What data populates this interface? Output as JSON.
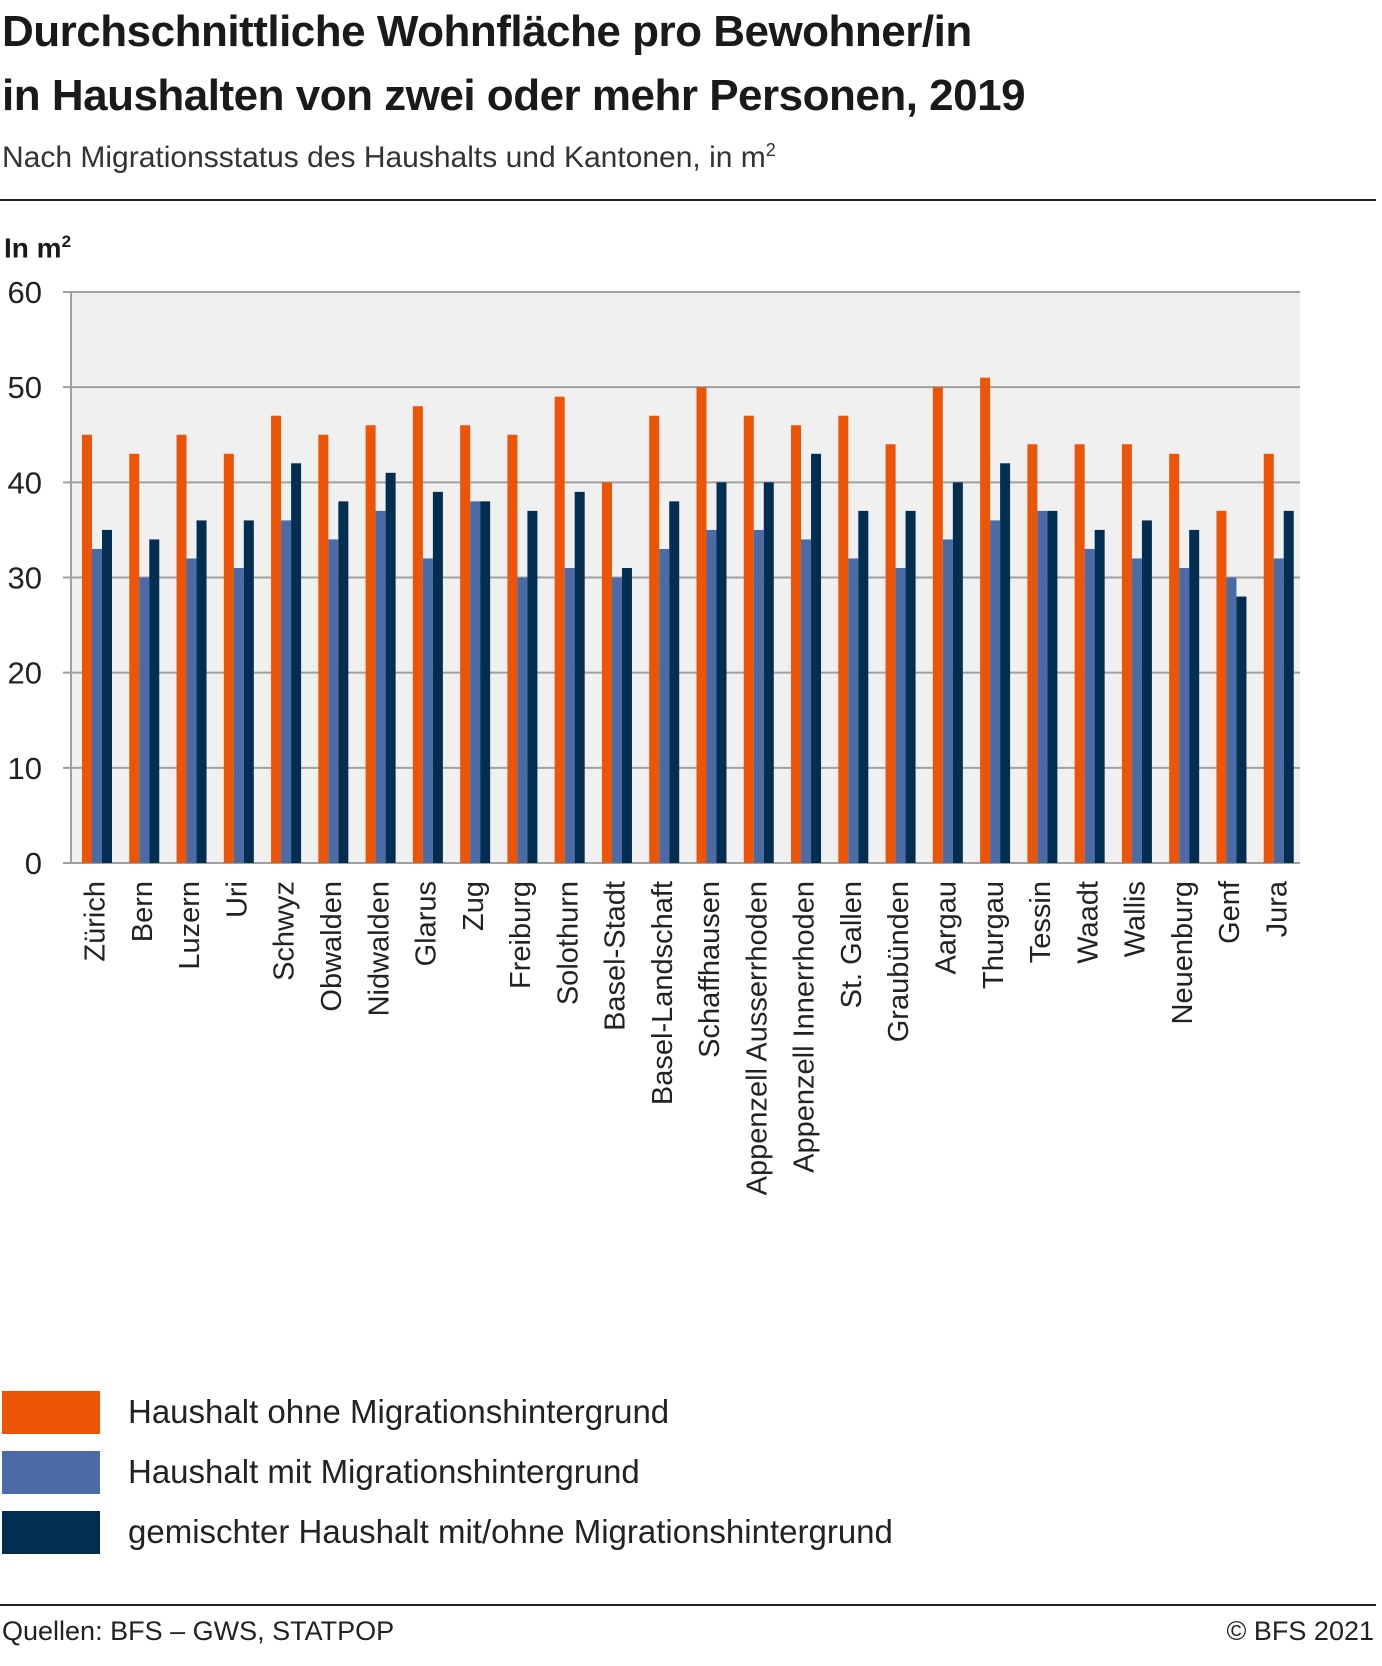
{
  "header": {
    "title_line1": "Durchschnittliche Wohnfläche pro Bewohner/in",
    "title_line2": "in Haushalten von zwei oder mehr Personen, 2019",
    "subtitle": "Nach Migrationsstatus des Haushalts und Kantonen, in m",
    "subtitle_sup": "2"
  },
  "footer": {
    "source": "Quellen: BFS – GWS, STATPOP",
    "copyright": "© BFS 2021"
  },
  "chart_data": {
    "type": "bar",
    "title": "Durchschnittliche Wohnfläche pro Bewohner/in in Haushalten von zwei oder mehr Personen, 2019",
    "ylabel": "In m",
    "ylabel_sup": "2",
    "xlabel": "",
    "ylim": [
      0,
      60
    ],
    "yticks": [
      0,
      10,
      20,
      30,
      40,
      50,
      60
    ],
    "grid": true,
    "legend_position": "bottom-left",
    "categories": [
      "Zürich",
      "Bern",
      "Luzern",
      "Uri",
      "Schwyz",
      "Obwalden",
      "Nidwalden",
      "Glarus",
      "Zug",
      "Freiburg",
      "Solothurn",
      "Basel-Stadt",
      "Basel-Landschaft",
      "Schaffhausen",
      "Appenzell Ausserrhoden",
      "Appenzell Innerrhoden",
      "St. Gallen",
      "Graubünden",
      "Aargau",
      "Thurgau",
      "Tessin",
      "Waadt",
      "Wallis",
      "Neuenburg",
      "Genf",
      "Jura"
    ],
    "series": [
      {
        "name": "Haushalt ohne Migrationshintergrund",
        "color": "#ec5506",
        "values": [
          45,
          43,
          45,
          43,
          47,
          45,
          46,
          48,
          46,
          45,
          49,
          40,
          47,
          50,
          47,
          46,
          47,
          44,
          50,
          51,
          44,
          44,
          44,
          43,
          37,
          43
        ]
      },
      {
        "name": "Haushalt mit Migrationshintergrund",
        "color": "#4a6ba6",
        "values": [
          33,
          30,
          32,
          31,
          36,
          34,
          37,
          32,
          38,
          30,
          31,
          30,
          33,
          35,
          35,
          34,
          32,
          31,
          34,
          36,
          37,
          33,
          32,
          31,
          30,
          32
        ]
      },
      {
        "name": "gemischter Haushalt mit/ohne Migrationshintergrund",
        "color": "#022f51",
        "values": [
          35,
          34,
          36,
          36,
          42,
          38,
          41,
          39,
          38,
          37,
          39,
          31,
          38,
          40,
          40,
          43,
          37,
          37,
          40,
          42,
          37,
          35,
          36,
          35,
          28,
          37
        ]
      }
    ]
  }
}
